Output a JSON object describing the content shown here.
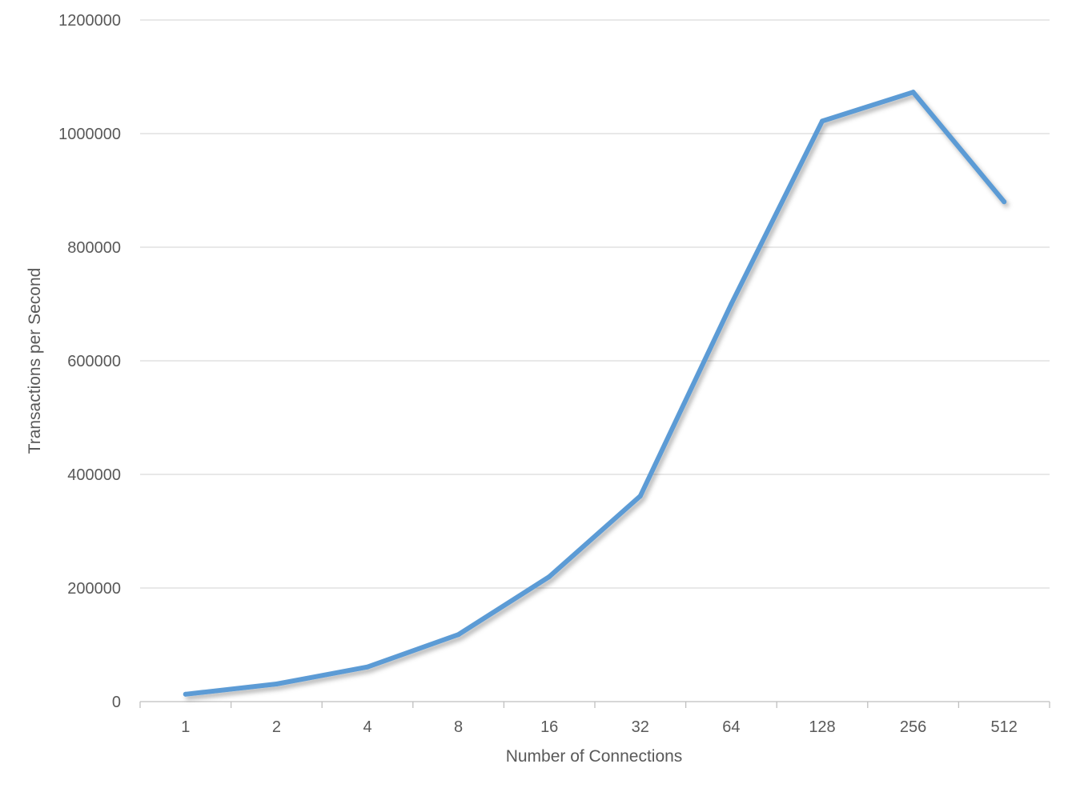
{
  "chart_data": {
    "type": "line",
    "categories": [
      "1",
      "2",
      "4",
      "8",
      "16",
      "32",
      "64",
      "128",
      "256",
      "512"
    ],
    "series": [
      {
        "values": [
          13000,
          31000,
          61000,
          118000,
          220000,
          362000,
          700000,
          1022000,
          1073000,
          880000
        ],
        "color": "#5b9bd5"
      }
    ],
    "title": "",
    "xlabel": "Number of Connections",
    "ylabel": "Transactions per Second",
    "ylim": [
      0,
      1200000
    ],
    "yticks": [
      0,
      200000,
      400000,
      600000,
      800000,
      1000000,
      1200000
    ],
    "ytick_labels": [
      "0",
      "200000",
      "400000",
      "600000",
      "800000",
      "1000000",
      "1200000"
    ],
    "grid": true,
    "legend": "none"
  }
}
